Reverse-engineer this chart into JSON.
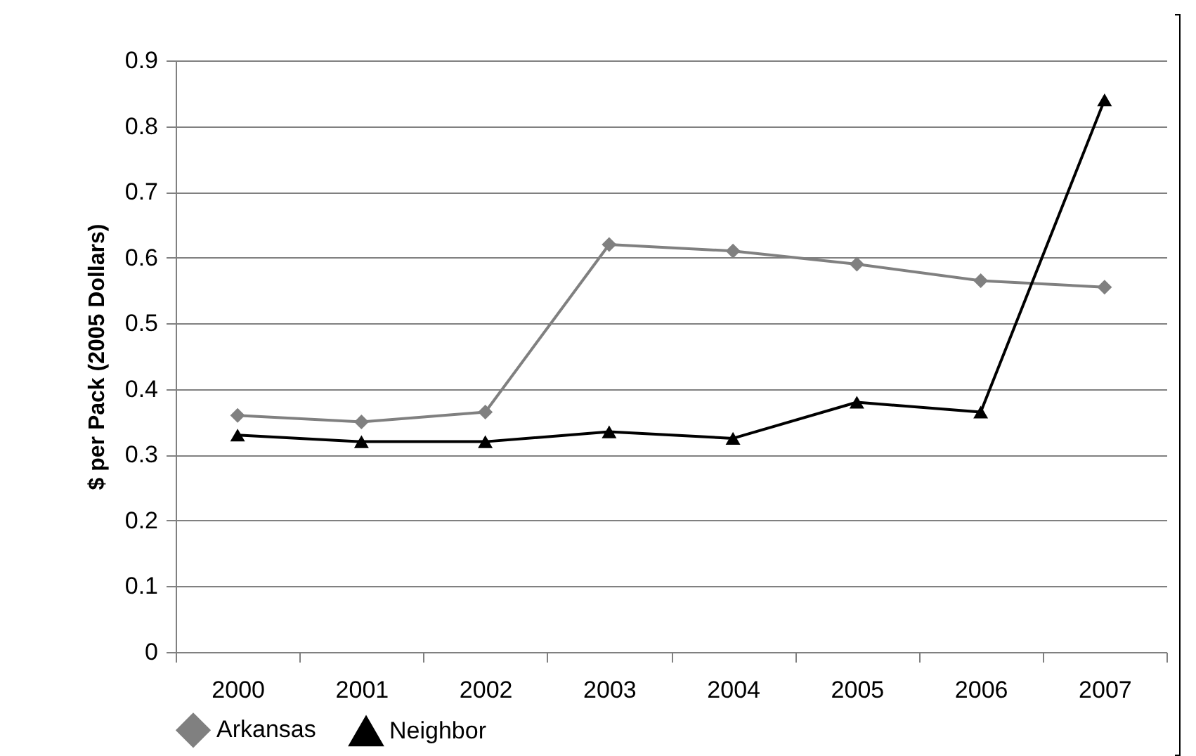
{
  "chart_data": {
    "type": "line",
    "ylabel": "$ per Pack (2005 Dollars)",
    "categories": [
      "2000",
      "2001",
      "2002",
      "2003",
      "2004",
      "2005",
      "2006",
      "2007"
    ],
    "series": [
      {
        "name": "Arkansas",
        "color": "#808080",
        "marker": "diamond",
        "values": [
          0.36,
          0.35,
          0.365,
          0.62,
          0.61,
          0.59,
          0.565,
          0.555
        ]
      },
      {
        "name": "Neighbor",
        "color": "#000000",
        "marker": "triangle",
        "values": [
          0.33,
          0.32,
          0.32,
          0.335,
          0.325,
          0.38,
          0.365,
          0.84
        ]
      }
    ],
    "ylim": [
      0,
      0.9
    ],
    "yticks": [
      0,
      0.1,
      0.2,
      0.3,
      0.4,
      0.5,
      0.6,
      0.7,
      0.8,
      0.9
    ],
    "grid": "y",
    "legend": "bottom"
  }
}
